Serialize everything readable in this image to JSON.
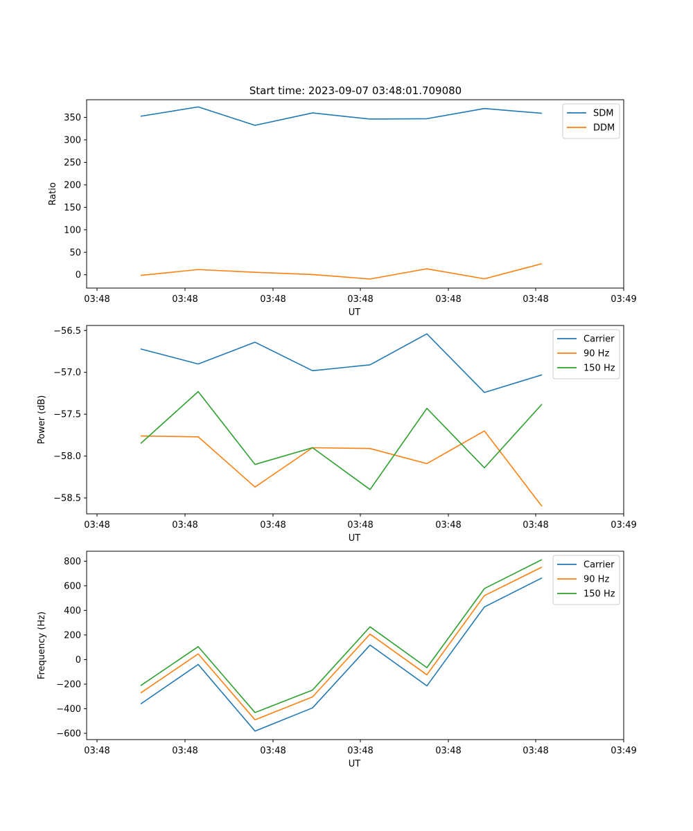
{
  "figure": {
    "title": "Start time: 2023-09-07 03:48:01.709080"
  },
  "chart_data": [
    {
      "type": "line",
      "id": "ratio",
      "xlabel": "UT",
      "ylabel": "Ratio",
      "xticks": [
        "03:48",
        "03:48",
        "03:48",
        "03:48",
        "03:48",
        "03:48",
        "03:49"
      ],
      "yticks": [
        "0",
        "50",
        "100",
        "150",
        "200",
        "250",
        "300",
        "350"
      ],
      "ylim": [
        -29.7,
        389.3
      ],
      "yticks_values": [
        0,
        50,
        100,
        150,
        200,
        250,
        300,
        350
      ],
      "legend_loc": "upper right",
      "x": [
        0,
        1,
        2,
        3,
        4,
        5,
        6,
        7
      ],
      "series": [
        {
          "name": "SDM",
          "color": "#1f77b4",
          "values": [
            352.5,
            373.3,
            332.3,
            359.9,
            346.2,
            347.1,
            369.8,
            359.1
          ]
        },
        {
          "name": "DDM",
          "color": "#ff7f0e",
          "values": [
            -1.5,
            11.5,
            5.4,
            0.4,
            -9.5,
            13.2,
            -9.1,
            24.6
          ]
        }
      ]
    },
    {
      "type": "line",
      "id": "power",
      "xlabel": "UT",
      "ylabel": "Power (dB)",
      "xticks": [
        "03:48",
        "03:48",
        "03:48",
        "03:48",
        "03:48",
        "03:48",
        "03:49"
      ],
      "yticks": [
        "−58.5",
        "−58.0",
        "−57.5",
        "−57.0",
        "−56.5"
      ],
      "yticks_values": [
        -58.5,
        -58.0,
        -57.5,
        -57.0,
        -56.5
      ],
      "ylim": [
        -58.69,
        -56.44
      ],
      "legend_loc": "upper right",
      "x": [
        0,
        1,
        2,
        3,
        4,
        5,
        6,
        7
      ],
      "series": [
        {
          "name": "Carrier",
          "color": "#1f77b4",
          "values": [
            -56.72,
            -56.9,
            -56.64,
            -56.98,
            -56.91,
            -56.54,
            -57.24,
            -57.03
          ]
        },
        {
          "name": "90 Hz",
          "color": "#ff7f0e",
          "values": [
            -57.76,
            -57.77,
            -58.37,
            -57.9,
            -57.91,
            -58.09,
            -57.7,
            -58.6
          ]
        },
        {
          "name": "150 Hz",
          "color": "#2ca02c",
          "values": [
            -57.85,
            -57.23,
            -58.1,
            -57.9,
            -58.4,
            -57.43,
            -58.14,
            -57.38
          ]
        }
      ]
    },
    {
      "type": "line",
      "id": "frequency",
      "xlabel": "UT",
      "ylabel": "Frequency (Hz)",
      "xticks": [
        "03:48",
        "03:48",
        "03:48",
        "03:48",
        "03:48",
        "03:48",
        "03:49"
      ],
      "yticks": [
        "−600",
        "−400",
        "−200",
        "0",
        "200",
        "400",
        "600",
        "800"
      ],
      "yticks_values": [
        -600,
        -400,
        -200,
        0,
        200,
        400,
        600,
        800
      ],
      "ylim": [
        -651,
        881
      ],
      "legend_loc": "upper right",
      "x": [
        0,
        1,
        2,
        3,
        4,
        5,
        6,
        7
      ],
      "series": [
        {
          "name": "Carrier",
          "color": "#1f77b4",
          "values": [
            -361,
            -40,
            -582,
            -393,
            118,
            -214,
            428,
            664
          ]
        },
        {
          "name": "90 Hz",
          "color": "#ff7f0e",
          "values": [
            -272,
            46,
            -490,
            -304,
            207,
            -124,
            520,
            752
          ]
        },
        {
          "name": "150 Hz",
          "color": "#2ca02c",
          "values": [
            -212,
            105,
            -431,
            -248,
            266,
            -66,
            577,
            813
          ]
        }
      ]
    }
  ]
}
